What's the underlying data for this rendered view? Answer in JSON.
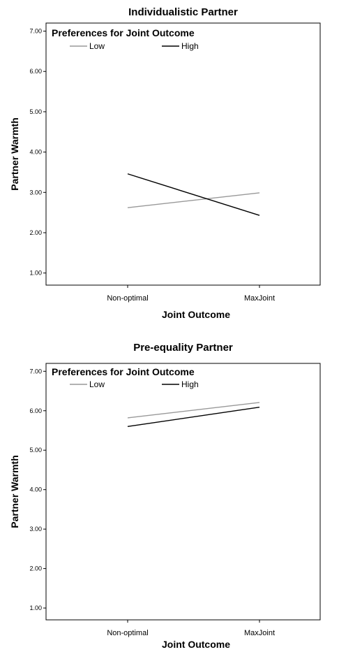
{
  "chart_data": [
    {
      "type": "line",
      "title": "Individualistic Partner",
      "xlabel": "Joint Outcome",
      "ylabel": "Partner Warmth",
      "categories": [
        "Non-optimal",
        "MaxJoint"
      ],
      "ylim": [
        0.7,
        7.2
      ],
      "yticks": [
        1.0,
        2.0,
        3.0,
        4.0,
        5.0,
        6.0,
        7.0
      ],
      "ytick_labels": [
        "1.00",
        "2.00",
        "3.00",
        "4.00",
        "5.00",
        "6.00",
        "7.00"
      ],
      "legend": {
        "title": "Preferences for Joint Outcome",
        "placement": "top-left"
      },
      "grid": false,
      "series": [
        {
          "name": "Low",
          "values": [
            2.62,
            2.99
          ],
          "color": "#999999"
        },
        {
          "name": "High",
          "values": [
            3.46,
            2.43
          ],
          "color": "#000000"
        }
      ]
    },
    {
      "type": "line",
      "title": "Pre-equality Partner",
      "xlabel": "Joint Outcome",
      "ylabel": "Partner Warmth",
      "categories": [
        "Non-optimal",
        "MaxJoint"
      ],
      "ylim": [
        0.7,
        7.2
      ],
      "yticks": [
        1.0,
        2.0,
        3.0,
        4.0,
        5.0,
        6.0,
        7.0
      ],
      "ytick_labels": [
        "1.00",
        "2.00",
        "3.00",
        "4.00",
        "5.00",
        "6.00",
        "7.00"
      ],
      "legend": {
        "title": "Preferences for Joint Outcome",
        "placement": "top-left"
      },
      "grid": false,
      "series": [
        {
          "name": "Low",
          "values": [
            5.82,
            6.21
          ],
          "color": "#999999"
        },
        {
          "name": "High",
          "values": [
            5.6,
            6.09
          ],
          "color": "#000000"
        }
      ]
    }
  ]
}
